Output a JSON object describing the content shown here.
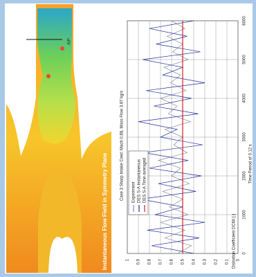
{
  "flow_field": {
    "caption": "Instantaneous Flow Field in Symmetry Plane",
    "label": "AIP"
  },
  "chart_data": {
    "type": "line",
    "title": "Case 3 Sharp Intake Cowl: Mach 0.88, Mass Flow 3.87 kg/s",
    "x_label": "Time Period of 0.12 s",
    "y_label": "Distortion Coefficient DC60 [-]",
    "x": [
      0,
      200,
      400,
      600,
      800,
      1000,
      1200,
      1400,
      1600,
      1800,
      2000,
      2200,
      2400,
      2600,
      2800,
      3000,
      3200,
      3400,
      3600,
      3800,
      4000,
      4200,
      4400,
      4600,
      4800,
      5000,
      5200,
      5400,
      5600,
      5800,
      6000
    ],
    "series": [
      {
        "name": "Experiment",
        "color": "#8a8aa8",
        "values": [
          0.55,
          0.42,
          0.66,
          0.48,
          0.7,
          0.45,
          0.62,
          0.5,
          0.68,
          0.44,
          0.6,
          0.52,
          0.72,
          0.46,
          0.58,
          0.5,
          0.66,
          0.43,
          0.63,
          0.55,
          0.7,
          0.47,
          0.61,
          0.52,
          0.67,
          0.45,
          0.59,
          0.5,
          0.64,
          0.48,
          0.6
        ]
      },
      {
        "name": "DES S-A Instantaneous",
        "color": "#1f2f9e",
        "values": [
          0.4,
          0.78,
          0.35,
          0.82,
          0.3,
          0.75,
          0.5,
          0.88,
          0.38,
          0.72,
          0.33,
          0.8,
          0.45,
          0.85,
          0.32,
          0.7,
          0.55,
          0.9,
          0.36,
          0.76,
          0.42,
          0.83,
          0.3,
          0.68,
          0.5,
          0.86,
          0.34,
          0.74,
          0.46,
          0.8,
          0.4
        ]
      },
      {
        "name": "DES S-A Time-averaged",
        "color": "#d02020",
        "values": [
          0.5,
          0.5,
          0.5,
          0.5,
          0.5,
          0.5,
          0.5,
          0.5,
          0.5,
          0.5,
          0.5,
          0.5,
          0.5,
          0.5,
          0.5,
          0.5,
          0.5,
          0.5,
          0.5,
          0.5,
          0.5,
          0.5,
          0.5,
          0.5,
          0.5,
          0.5,
          0.5,
          0.5,
          0.5,
          0.5,
          0.5
        ]
      }
    ],
    "xlim": [
      0,
      6000
    ],
    "xticks": [
      0,
      1000,
      2000,
      3000,
      4000,
      5000,
      6000
    ],
    "ylim": [
      0,
      1
    ],
    "yticks": [
      0,
      0.1,
      0.2,
      0.3,
      0.4,
      0.5,
      0.6,
      0.7,
      0.8,
      0.9,
      1
    ],
    "grid": true
  }
}
